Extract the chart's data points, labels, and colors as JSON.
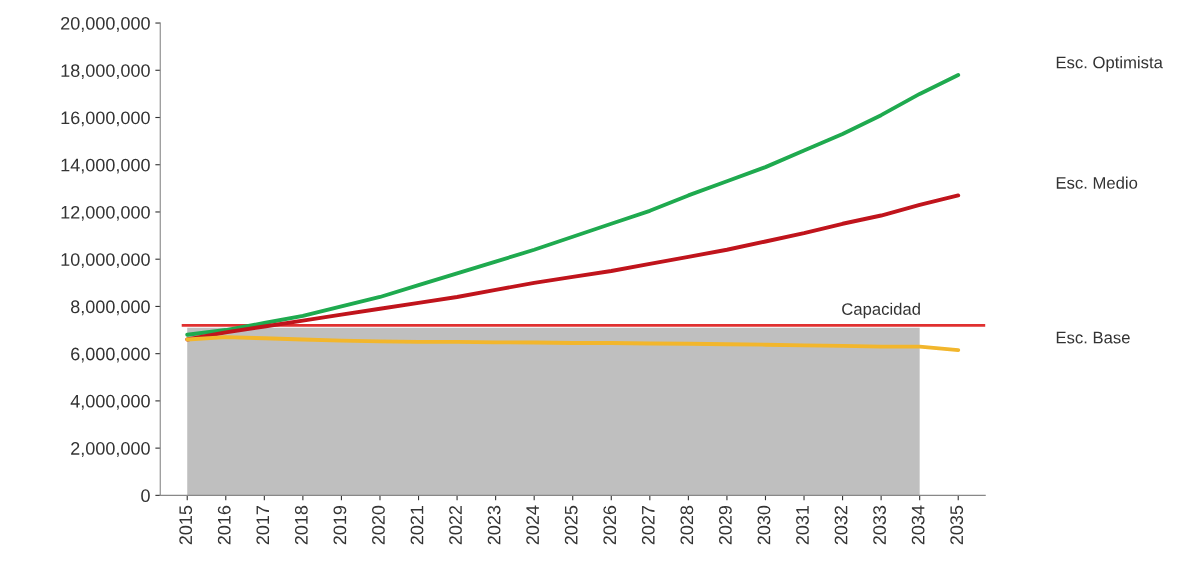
{
  "chart_data": {
    "type": "line",
    "categories": [
      "2015",
      "2016",
      "2017",
      "2018",
      "2019",
      "2020",
      "2021",
      "2022",
      "2023",
      "2024",
      "2025",
      "2026",
      "2027",
      "2028",
      "2029",
      "2030",
      "2031",
      "2032",
      "2033",
      "2034",
      "2035"
    ],
    "series": [
      {
        "type": "area",
        "color": "#bfbfbf",
        "values": [
          7100000,
          7100000,
          7100000,
          7100000,
          7100000,
          7100000,
          7100000,
          7100000,
          7100000,
          7100000,
          7100000,
          7100000,
          7100000,
          7100000,
          7100000,
          7100000,
          7100000,
          7100000,
          7100000,
          7100000,
          null
        ]
      },
      {
        "name": "Esc. Optimista",
        "color": "#1faa4f",
        "values": [
          6800000,
          7000000,
          7300000,
          7600000,
          8000000,
          8400000,
          8900000,
          9400000,
          9900000,
          10400000,
          10950000,
          11500000,
          12050000,
          12700000,
          13300000,
          13900000,
          14600000,
          15300000,
          16100000,
          17000000,
          17800000
        ]
      },
      {
        "name": "Esc. Medio",
        "color": "#c0141c",
        "values": [
          6600000,
          6900000,
          7150000,
          7400000,
          7650000,
          7900000,
          8150000,
          8400000,
          8700000,
          9000000,
          9250000,
          9500000,
          9800000,
          10100000,
          10400000,
          10750000,
          11100000,
          11500000,
          11850000,
          12300000,
          12700000
        ]
      },
      {
        "name": "Esc. Base",
        "color": "#f2b62c",
        "values": [
          6600000,
          6700000,
          6650000,
          6600000,
          6550000,
          6520000,
          6500000,
          6500000,
          6480000,
          6470000,
          6450000,
          6450000,
          6430000,
          6420000,
          6400000,
          6380000,
          6350000,
          6330000,
          6300000,
          6300000,
          6150000
        ]
      }
    ],
    "ref_lines": [
      {
        "axis": "y",
        "value": 7200000,
        "label": "Capacidad",
        "color": "#e03030"
      }
    ],
    "ylim": [
      0,
      20000000
    ],
    "yticks": [
      {
        "value": 0,
        "label": "0"
      },
      {
        "value": 2000000,
        "label": "2,000,000"
      },
      {
        "value": 4000000,
        "label": "4,000,000"
      },
      {
        "value": 6000000,
        "label": "6,000,000"
      },
      {
        "value": 8000000,
        "label": "8,000,000"
      },
      {
        "value": 10000000,
        "label": "10,000,000"
      },
      {
        "value": 12000000,
        "label": "12,000,000"
      },
      {
        "value": 14000000,
        "label": "14,000,000"
      },
      {
        "value": 16000000,
        "label": "16,000,000"
      },
      {
        "value": 18000000,
        "label": "18,000,000"
      },
      {
        "value": 20000000,
        "label": "20,000,000"
      }
    ],
    "grid": false,
    "legend": false
  }
}
